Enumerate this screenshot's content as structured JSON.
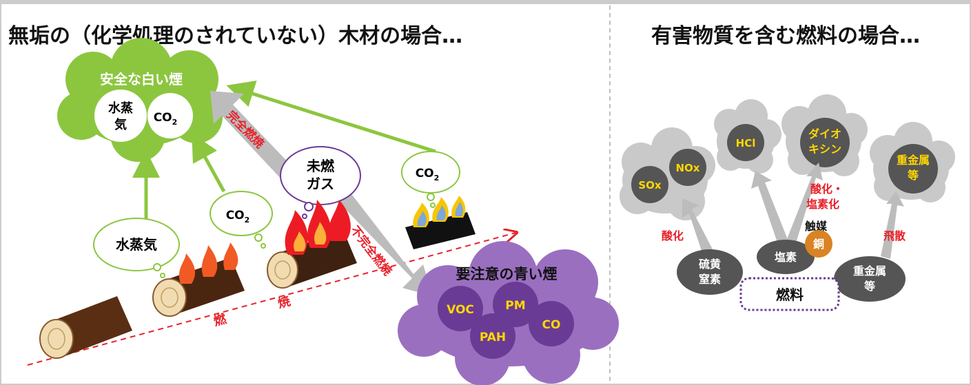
{
  "left_panel": {
    "title": "無垢の（化学処理のされていない）木材の場合…",
    "safe_smoke": {
      "label": "安全な白い煙",
      "steam": [
        "水蒸",
        "気"
      ],
      "co2": "CO",
      "co2_sub": "2"
    },
    "steam_bubble": "水蒸気",
    "co2_bubble_a": {
      "text": "CO",
      "sub": "2"
    },
    "co2_bubble_b": {
      "text": "CO",
      "sub": "2"
    },
    "unburnt_gas": [
      "未燃",
      "ガス"
    ],
    "complete_combustion": "完全燃焼",
    "incomplete_combustion": "不完全燃焼",
    "combustion_axis": [
      "燃",
      "焼"
    ],
    "blue_smoke": {
      "label": "要注意の青い煙",
      "items": [
        "VOC",
        "PM",
        "PAH",
        "CO"
      ]
    }
  },
  "right_panel": {
    "title": "有害物質を含む燃料の場合…",
    "clouds": {
      "sox": "SOx",
      "nox": "NOx",
      "hcl": "HCl",
      "dioxin": [
        "ダイオ",
        "キシン"
      ],
      "heavy_metal": [
        "重金属",
        "等"
      ]
    },
    "labels": {
      "oxidation": "酸化",
      "oxid_chlor": [
        "酸化・",
        "塩素化"
      ],
      "catalyst": "触媒",
      "copper": "銅",
      "scatter": "飛散"
    },
    "sources": {
      "sulfur_nitrogen": [
        "硫黄",
        "窒素"
      ],
      "chlorine": "塩素",
      "heavy_metal": [
        "重金属",
        "等"
      ]
    },
    "fuel": "燃料"
  },
  "colors": {
    "green": "#8cc63f",
    "purple": "#9b6fc0",
    "dark_purple": "#6a3b95",
    "red": "#e8212a",
    "gray": "#c9c9c9",
    "dark_gray": "#555555",
    "yellow": "#ffd700",
    "copper": "#d98324"
  }
}
